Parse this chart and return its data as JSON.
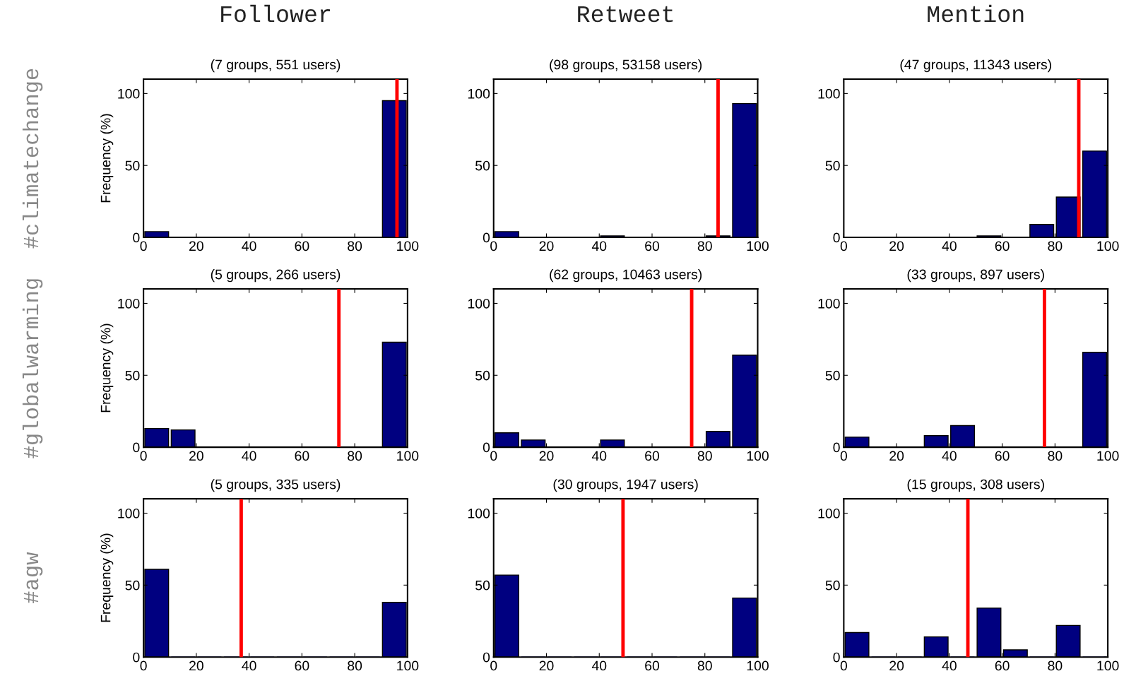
{
  "chart_data": [
    {
      "type": "histogram",
      "title": "Follower",
      "subtitle": "(7 groups, 551 users)",
      "annotations": [
        "#climatechange"
      ],
      "ylabel": "Frequency (%)",
      "bins": [
        0,
        10,
        20,
        30,
        40,
        50,
        60,
        70,
        80,
        90,
        100
      ],
      "values": [
        4,
        0,
        0,
        0,
        0,
        0,
        0,
        0,
        0,
        95
      ],
      "color": "#000080",
      "xlim": [
        0,
        100
      ],
      "ylim": [
        0,
        110
      ],
      "xticks": [
        0,
        20,
        40,
        60,
        80,
        100
      ],
      "yticks": [
        0,
        50,
        100
      ],
      "ref_lines": [
        {
          "axis": "x",
          "value": 96,
          "color": "#ff0000"
        }
      ]
    },
    {
      "type": "histogram",
      "title": "Retweet",
      "subtitle": "(98 groups, 53158 users)",
      "bins": [
        0,
        10,
        20,
        30,
        40,
        50,
        60,
        70,
        80,
        90,
        100
      ],
      "values": [
        4,
        0,
        0,
        0,
        1,
        0,
        0,
        0,
        1,
        93
      ],
      "color": "#000080",
      "xlim": [
        0,
        100
      ],
      "ylim": [
        0,
        110
      ],
      "xticks": [
        0,
        20,
        40,
        60,
        80,
        100
      ],
      "yticks": [
        0,
        50,
        100
      ],
      "ref_lines": [
        {
          "axis": "x",
          "value": 85,
          "color": "#ff0000"
        }
      ]
    },
    {
      "type": "histogram",
      "title": "Mention",
      "subtitle": "(47 groups, 11343 users)",
      "bins": [
        0,
        10,
        20,
        30,
        40,
        50,
        60,
        70,
        80,
        90,
        100
      ],
      "values": [
        0,
        0,
        0,
        0,
        0,
        1,
        0,
        9,
        28,
        60
      ],
      "color": "#000080",
      "xlim": [
        0,
        100
      ],
      "ylim": [
        0,
        110
      ],
      "xticks": [
        0,
        20,
        40,
        60,
        80,
        100
      ],
      "yticks": [
        0,
        50,
        100
      ],
      "ref_lines": [
        {
          "axis": "x",
          "value": 89,
          "color": "#ff0000"
        }
      ]
    },
    {
      "type": "histogram",
      "subtitle": "(5 groups, 266 users)",
      "annotations": [
        "#globalwarming"
      ],
      "ylabel": "Frequency (%)",
      "bins": [
        0,
        10,
        20,
        30,
        40,
        50,
        60,
        70,
        80,
        90,
        100
      ],
      "values": [
        13,
        12,
        0,
        0,
        0,
        0,
        0,
        0,
        0,
        73
      ],
      "color": "#000080",
      "xlim": [
        0,
        100
      ],
      "ylim": [
        0,
        110
      ],
      "xticks": [
        0,
        20,
        40,
        60,
        80,
        100
      ],
      "yticks": [
        0,
        50,
        100
      ],
      "ref_lines": [
        {
          "axis": "x",
          "value": 74,
          "color": "#ff0000"
        }
      ]
    },
    {
      "type": "histogram",
      "subtitle": "(62 groups, 10463 users)",
      "bins": [
        0,
        10,
        20,
        30,
        40,
        50,
        60,
        70,
        80,
        90,
        100
      ],
      "values": [
        10,
        5,
        0,
        0,
        5,
        0,
        0,
        0,
        11,
        64
      ],
      "color": "#000080",
      "xlim": [
        0,
        100
      ],
      "ylim": [
        0,
        110
      ],
      "xticks": [
        0,
        20,
        40,
        60,
        80,
        100
      ],
      "yticks": [
        0,
        50,
        100
      ],
      "ref_lines": [
        {
          "axis": "x",
          "value": 75,
          "color": "#ff0000"
        }
      ]
    },
    {
      "type": "histogram",
      "subtitle": "(33 groups, 897 users)",
      "bins": [
        0,
        10,
        20,
        30,
        40,
        50,
        60,
        70,
        80,
        90,
        100
      ],
      "values": [
        7,
        0,
        0,
        8,
        15,
        0,
        0,
        0,
        0,
        66
      ],
      "color": "#000080",
      "xlim": [
        0,
        100
      ],
      "ylim": [
        0,
        110
      ],
      "xticks": [
        0,
        20,
        40,
        60,
        80,
        100
      ],
      "yticks": [
        0,
        50,
        100
      ],
      "ref_lines": [
        {
          "axis": "x",
          "value": 76,
          "color": "#ff0000"
        }
      ]
    },
    {
      "type": "histogram",
      "subtitle": "(5 groups, 335 users)",
      "annotations": [
        "#agw"
      ],
      "ylabel": "Frequency (%)",
      "bins": [
        0,
        10,
        20,
        30,
        40,
        50,
        60,
        70,
        80,
        90,
        100
      ],
      "values": [
        61,
        0,
        0,
        0,
        0,
        0,
        0,
        0,
        0,
        38
      ],
      "color": "#000080",
      "xlim": [
        0,
        100
      ],
      "ylim": [
        0,
        110
      ],
      "xticks": [
        0,
        20,
        40,
        60,
        80,
        100
      ],
      "yticks": [
        0,
        50,
        100
      ],
      "ref_lines": [
        {
          "axis": "x",
          "value": 37,
          "color": "#ff0000"
        }
      ]
    },
    {
      "type": "histogram",
      "subtitle": "(30 groups, 1947 users)",
      "bins": [
        0,
        10,
        20,
        30,
        40,
        50,
        60,
        70,
        80,
        90,
        100
      ],
      "values": [
        57,
        0,
        0,
        0,
        0,
        0,
        0,
        0,
        0,
        41
      ],
      "color": "#000080",
      "xlim": [
        0,
        100
      ],
      "ylim": [
        0,
        110
      ],
      "xticks": [
        0,
        20,
        40,
        60,
        80,
        100
      ],
      "yticks": [
        0,
        50,
        100
      ],
      "ref_lines": [
        {
          "axis": "x",
          "value": 49,
          "color": "#ff0000"
        }
      ]
    },
    {
      "type": "histogram",
      "subtitle": "(15 groups, 308 users)",
      "bins": [
        0,
        10,
        20,
        30,
        40,
        50,
        60,
        70,
        80,
        90,
        100
      ],
      "values": [
        17,
        0,
        0,
        14,
        0,
        34,
        5,
        0,
        22,
        0
      ],
      "color": "#000080",
      "xlim": [
        0,
        100
      ],
      "ylim": [
        0,
        110
      ],
      "xticks": [
        0,
        20,
        40,
        60,
        80,
        100
      ],
      "yticks": [
        0,
        50,
        100
      ],
      "ref_lines": [
        {
          "axis": "x",
          "value": 47,
          "color": "#ff0000"
        }
      ]
    }
  ]
}
